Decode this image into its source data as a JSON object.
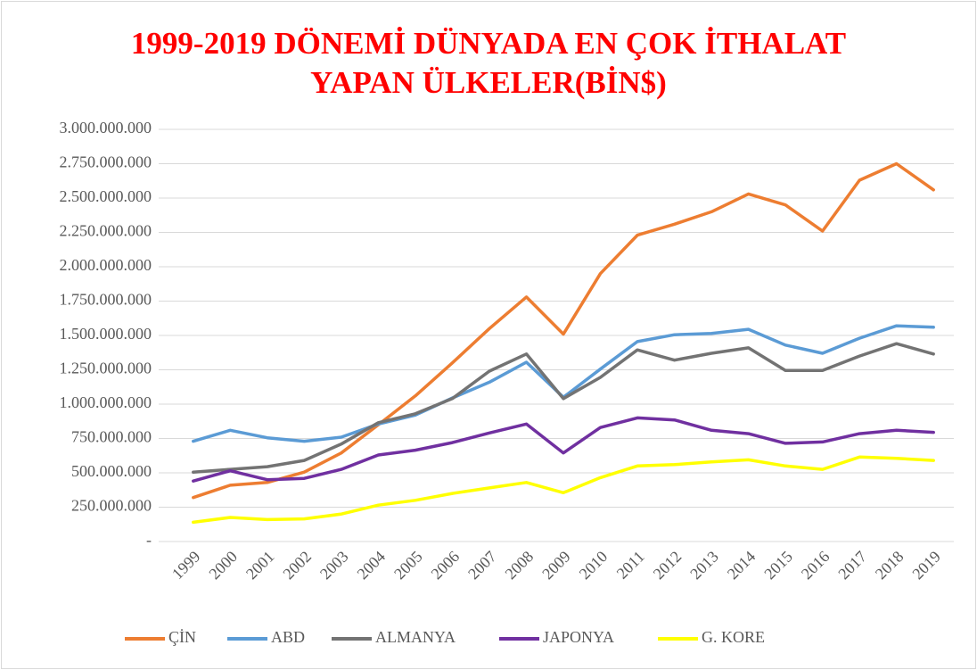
{
  "chart_data": {
    "type": "line",
    "title": "1999-2019 DÖNEMİ DÜNYADA EN ÇOK İTHALAT",
    "subtitle": "YAPAN ÜLKELER(BİN$)",
    "categories": [
      "1999",
      "2000",
      "2001",
      "2002",
      "2003",
      "2004",
      "2005",
      "2006",
      "2007",
      "2008",
      "2009",
      "2010",
      "2011",
      "2012",
      "2013",
      "2014",
      "2015",
      "2016",
      "2017",
      "2018",
      "2019"
    ],
    "series": [
      {
        "name": "ÇİN",
        "color": "#ed7d31",
        "values": [
          320000000,
          410000000,
          430000000,
          505000000,
          645000000,
          850000000,
          1060000000,
          1300000000,
          1550000000,
          1780000000,
          1510000000,
          1950000000,
          2230000000,
          2310000000,
          2400000000,
          2530000000,
          2450000000,
          2260000000,
          2630000000,
          2750000000,
          2560000000
        ]
      },
      {
        "name": "ABD",
        "color": "#5b9bd5",
        "values": [
          730000000,
          810000000,
          755000000,
          730000000,
          760000000,
          855000000,
          920000000,
          1045000000,
          1160000000,
          1305000000,
          1050000000,
          1255000000,
          1455000000,
          1505000000,
          1515000000,
          1545000000,
          1430000000,
          1370000000,
          1480000000,
          1570000000,
          1560000000
        ]
      },
      {
        "name": "ALMANYA",
        "color": "#737373",
        "values": [
          505000000,
          525000000,
          545000000,
          590000000,
          710000000,
          865000000,
          930000000,
          1040000000,
          1240000000,
          1365000000,
          1040000000,
          1195000000,
          1395000000,
          1320000000,
          1370000000,
          1410000000,
          1245000000,
          1245000000,
          1350000000,
          1440000000,
          1365000000
        ]
      },
      {
        "name": "JAPONYA",
        "color": "#7030a0",
        "values": [
          440000000,
          515000000,
          450000000,
          460000000,
          525000000,
          630000000,
          665000000,
          720000000,
          790000000,
          855000000,
          645000000,
          830000000,
          900000000,
          885000000,
          810000000,
          785000000,
          715000000,
          725000000,
          785000000,
          810000000,
          795000000
        ]
      },
      {
        "name": "G. KORE",
        "color": "#ffff00",
        "values": [
          140000000,
          175000000,
          160000000,
          165000000,
          200000000,
          265000000,
          300000000,
          350000000,
          390000000,
          430000000,
          355000000,
          465000000,
          550000000,
          560000000,
          580000000,
          595000000,
          550000000,
          525000000,
          615000000,
          605000000,
          590000000
        ]
      }
    ],
    "ylim": [
      0,
      3000000000
    ],
    "yticks": [
      {
        "value": 0,
        "label": "-"
      },
      {
        "value": 250000000,
        "label": "250.000.000"
      },
      {
        "value": 500000000,
        "label": "500.000.000"
      },
      {
        "value": 750000000,
        "label": "750.000.000"
      },
      {
        "value": 1000000000,
        "label": "1.000.000.000"
      },
      {
        "value": 1250000000,
        "label": "1.250.000.000"
      },
      {
        "value": 1500000000,
        "label": "1.500.000.000"
      },
      {
        "value": 1750000000,
        "label": "1.750.000.000"
      },
      {
        "value": 2000000000,
        "label": "2.000.000.000"
      },
      {
        "value": 2250000000,
        "label": "2.250.000.000"
      },
      {
        "value": 2500000000,
        "label": "2.500.000.000"
      },
      {
        "value": 2750000000,
        "label": "2.750.000.000"
      },
      {
        "value": 3000000000,
        "label": "3.000.000.000"
      }
    ],
    "grid": true,
    "legend": "bottom"
  }
}
